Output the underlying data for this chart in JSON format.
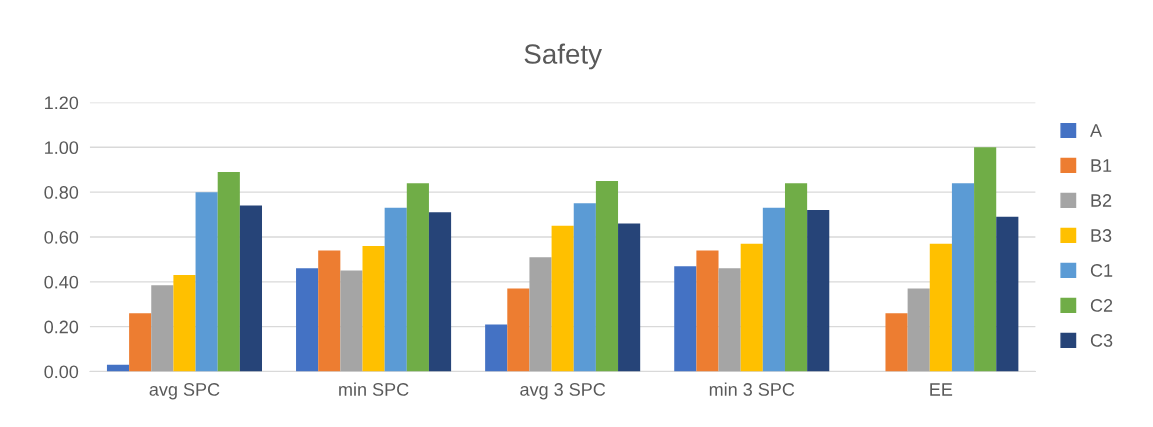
{
  "chart_data": {
    "type": "bar",
    "title": "Safety",
    "categories": [
      "avg SPC",
      "min SPC",
      "avg 3 SPC",
      "min 3 SPC",
      "EE"
    ],
    "series": [
      {
        "name": "A",
        "color": "#4472c4",
        "values": [
          0.03,
          0.46,
          0.21,
          0.47,
          0
        ]
      },
      {
        "name": "B1",
        "color": "#ed7d31",
        "values": [
          0.26,
          0.54,
          0.37,
          0.54,
          0.26
        ]
      },
      {
        "name": "B2",
        "color": "#a5a5a5",
        "values": [
          0.385,
          0.45,
          0.51,
          0.46,
          0.37
        ]
      },
      {
        "name": "B3",
        "color": "#ffc000",
        "values": [
          0.43,
          0.56,
          0.65,
          0.57,
          0.57
        ]
      },
      {
        "name": "C1",
        "color": "#5b9bd5",
        "values": [
          0.8,
          0.73,
          0.75,
          0.73,
          0.84
        ]
      },
      {
        "name": "C2",
        "color": "#70ad47",
        "values": [
          0.89,
          0.84,
          0.85,
          0.84,
          1.0
        ]
      },
      {
        "name": "C3",
        "color": "#264478",
        "values": [
          0.74,
          0.71,
          0.66,
          0.72,
          0.69
        ]
      }
    ],
    "ylim": [
      0,
      1.2
    ],
    "yticks": [
      {
        "value": 0,
        "label": "0.00"
      },
      {
        "value": 0.2,
        "label": "0.20"
      },
      {
        "value": 0.4,
        "label": "0.40"
      },
      {
        "value": 0.6,
        "label": "0.60"
      },
      {
        "value": 0.8,
        "label": "0.80"
      },
      {
        "value": 1.0,
        "label": "1.00"
      },
      {
        "value": 1.2,
        "label": "1.20"
      }
    ],
    "grid": "y",
    "legend": "right"
  }
}
